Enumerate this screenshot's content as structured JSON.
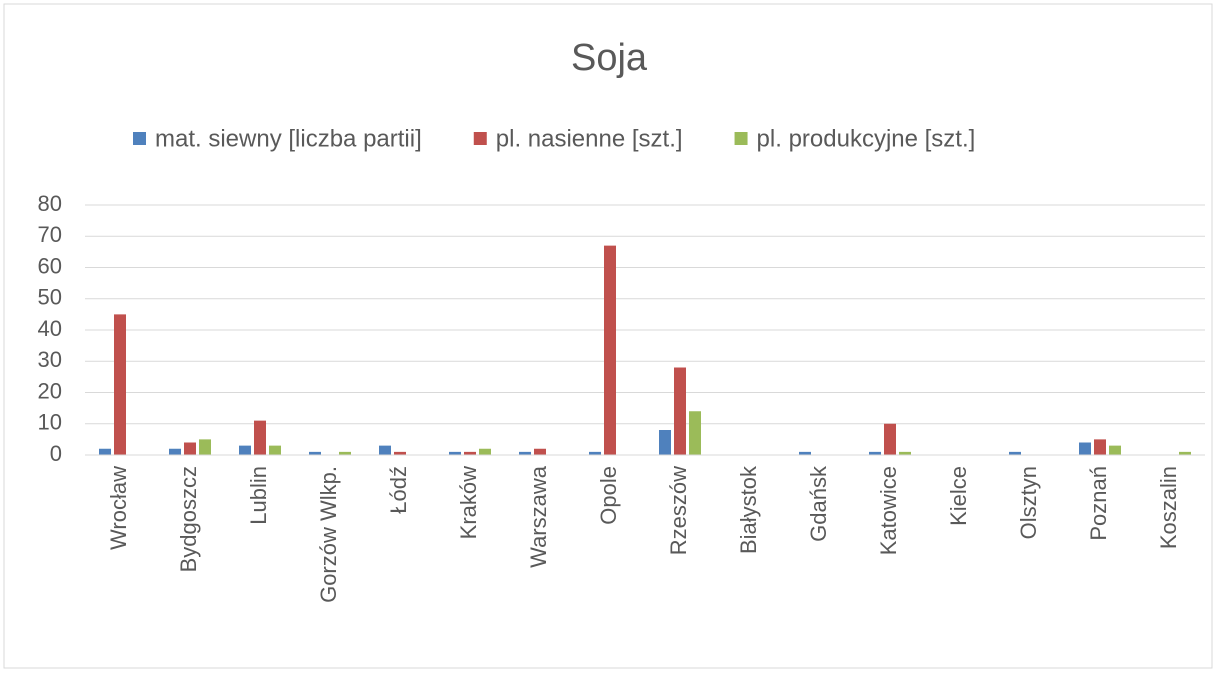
{
  "chart_data": {
    "type": "bar",
    "title": "Soja",
    "categories": [
      "Wrocław",
      "Bydgoszcz",
      "Lublin",
      "Gorzów Wlkp.",
      "Łódź",
      "Kraków",
      "Warszawa",
      "Opole",
      "Rzeszów",
      "Białystok",
      "Gdańsk",
      "Katowice",
      "Kielce",
      "Olsztyn",
      "Poznań",
      "Koszalin"
    ],
    "series": [
      {
        "name": "mat. siewny [liczba partii]",
        "color": "#4f81bd",
        "values": [
          2,
          2,
          3,
          1,
          3,
          1,
          1,
          1,
          8,
          0,
          1,
          1,
          0,
          1,
          4,
          0
        ]
      },
      {
        "name": "pl. nasienne [szt.]",
        "color": "#c0504d",
        "values": [
          45,
          4,
          11,
          0,
          1,
          1,
          2,
          67,
          28,
          0,
          0,
          10,
          0,
          0,
          5,
          0
        ]
      },
      {
        "name": "pl. produkcyjne [szt.]",
        "color": "#9bbb59",
        "values": [
          0,
          5,
          3,
          1,
          0,
          2,
          0,
          0,
          14,
          0,
          0,
          1,
          0,
          0,
          3,
          1
        ]
      }
    ],
    "ylim": [
      0,
      80
    ],
    "yticks": [
      0,
      10,
      20,
      30,
      40,
      50,
      60,
      70,
      80
    ],
    "grid": true,
    "legend": "top"
  }
}
